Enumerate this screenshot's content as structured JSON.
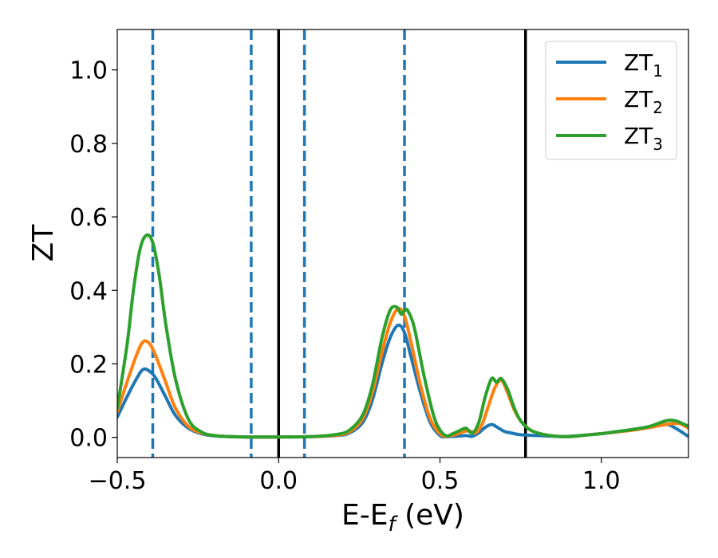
{
  "chart_data": {
    "type": "line",
    "title": "",
    "xlabel": "E-E",
    "xlabel_sub": "f",
    "xlabel_unit": " (eV)",
    "ylabel": "ZT",
    "xlim": [
      -0.5,
      1.27
    ],
    "ylim": [
      -0.055,
      1.11
    ],
    "x_ticks": [
      -0.5,
      0.0,
      0.5,
      1.0
    ],
    "x_tick_labels": [
      "−0.5",
      "0.0",
      "0.5",
      "1.0"
    ],
    "y_ticks": [
      0.0,
      0.2,
      0.4,
      0.6,
      0.8,
      1.0
    ],
    "y_tick_labels": [
      "0.0",
      "0.2",
      "0.4",
      "0.6",
      "0.8",
      "1.0"
    ],
    "grid": false,
    "legend_position": "top-right",
    "vertical_lines": [
      {
        "x": -0.39,
        "style": "dashed",
        "color": "#1f77b4"
      },
      {
        "x": -0.085,
        "style": "dashed",
        "color": "#1f77b4"
      },
      {
        "x": 0.0,
        "style": "solid",
        "color": "#000000"
      },
      {
        "x": 0.08,
        "style": "dashed",
        "color": "#1f77b4"
      },
      {
        "x": 0.39,
        "style": "dashed",
        "color": "#1f77b4"
      },
      {
        "x": 0.765,
        "style": "solid",
        "color": "#000000"
      }
    ],
    "series": [
      {
        "name": "ZT",
        "name_sub": "1",
        "color": "#1f77b4",
        "x": [
          -0.5,
          -0.47,
          -0.44,
          -0.42,
          -0.4,
          -0.38,
          -0.35,
          -0.32,
          -0.28,
          -0.24,
          -0.2,
          -0.15,
          -0.1,
          0.0,
          0.1,
          0.18,
          0.22,
          0.26,
          0.29,
          0.32,
          0.345,
          0.37,
          0.39,
          0.41,
          0.44,
          0.47,
          0.5,
          0.52,
          0.55,
          0.58,
          0.6,
          0.62,
          0.64,
          0.66,
          0.68,
          0.7,
          0.72,
          0.75,
          0.8,
          0.85,
          0.88,
          0.95,
          1.0,
          1.05,
          1.1,
          1.15,
          1.2,
          1.23,
          1.27
        ],
        "y": [
          0.055,
          0.11,
          0.16,
          0.185,
          0.18,
          0.16,
          0.11,
          0.06,
          0.025,
          0.01,
          0.004,
          0.002,
          0.001,
          0.001,
          0.002,
          0.005,
          0.012,
          0.04,
          0.1,
          0.2,
          0.27,
          0.305,
          0.285,
          0.22,
          0.12,
          0.04,
          0.005,
          0.002,
          0.003,
          0.005,
          0.003,
          0.012,
          0.027,
          0.035,
          0.026,
          0.016,
          0.012,
          0.007,
          0.005,
          0.003,
          0.002,
          0.006,
          0.01,
          0.015,
          0.02,
          0.027,
          0.035,
          0.025,
          0.002
        ]
      },
      {
        "name": "ZT",
        "name_sub": "2",
        "color": "#ff7f0e",
        "x": [
          -0.5,
          -0.47,
          -0.44,
          -0.42,
          -0.4,
          -0.38,
          -0.35,
          -0.32,
          -0.28,
          -0.24,
          -0.2,
          -0.15,
          -0.1,
          0.0,
          0.1,
          0.18,
          0.22,
          0.26,
          0.29,
          0.32,
          0.345,
          0.37,
          0.39,
          0.41,
          0.44,
          0.47,
          0.5,
          0.52,
          0.55,
          0.57,
          0.59,
          0.61,
          0.63,
          0.65,
          0.67,
          0.69,
          0.71,
          0.73,
          0.75,
          0.78,
          0.82,
          0.86,
          0.9,
          0.95,
          1.0,
          1.05,
          1.1,
          1.15,
          1.2,
          1.24,
          1.27
        ],
        "y": [
          0.07,
          0.15,
          0.225,
          0.26,
          0.255,
          0.22,
          0.15,
          0.08,
          0.03,
          0.012,
          0.005,
          0.002,
          0.001,
          0.001,
          0.002,
          0.006,
          0.015,
          0.05,
          0.12,
          0.23,
          0.31,
          0.35,
          0.33,
          0.26,
          0.14,
          0.05,
          0.01,
          0.003,
          0.008,
          0.015,
          0.018,
          0.012,
          0.035,
          0.085,
          0.135,
          0.155,
          0.12,
          0.075,
          0.045,
          0.02,
          0.008,
          0.003,
          0.002,
          0.006,
          0.01,
          0.015,
          0.02,
          0.027,
          0.035,
          0.038,
          0.025
        ]
      },
      {
        "name": "ZT",
        "name_sub": "3",
        "color": "#2ca02c",
        "x": [
          -0.5,
          -0.47,
          -0.45,
          -0.43,
          -0.41,
          -0.39,
          -0.37,
          -0.35,
          -0.32,
          -0.28,
          -0.24,
          -0.2,
          -0.15,
          -0.1,
          0.0,
          0.1,
          0.18,
          0.22,
          0.26,
          0.29,
          0.32,
          0.345,
          0.365,
          0.38,
          0.39,
          0.4,
          0.42,
          0.45,
          0.48,
          0.5,
          0.52,
          0.54,
          0.56,
          0.58,
          0.6,
          0.62,
          0.64,
          0.66,
          0.675,
          0.69,
          0.71,
          0.73,
          0.75,
          0.78,
          0.82,
          0.86,
          0.9,
          0.95,
          1.0,
          1.05,
          1.1,
          1.15,
          1.2,
          1.23,
          1.27
        ],
        "y": [
          0.08,
          0.25,
          0.4,
          0.51,
          0.55,
          0.53,
          0.44,
          0.31,
          0.16,
          0.05,
          0.015,
          0.005,
          0.002,
          0.001,
          0.001,
          0.002,
          0.008,
          0.02,
          0.06,
          0.14,
          0.27,
          0.345,
          0.355,
          0.335,
          0.345,
          0.345,
          0.3,
          0.17,
          0.06,
          0.02,
          0.004,
          0.01,
          0.018,
          0.025,
          0.012,
          0.04,
          0.11,
          0.16,
          0.15,
          0.16,
          0.13,
          0.08,
          0.045,
          0.02,
          0.008,
          0.003,
          0.002,
          0.006,
          0.01,
          0.016,
          0.022,
          0.03,
          0.045,
          0.045,
          0.03
        ]
      }
    ]
  }
}
